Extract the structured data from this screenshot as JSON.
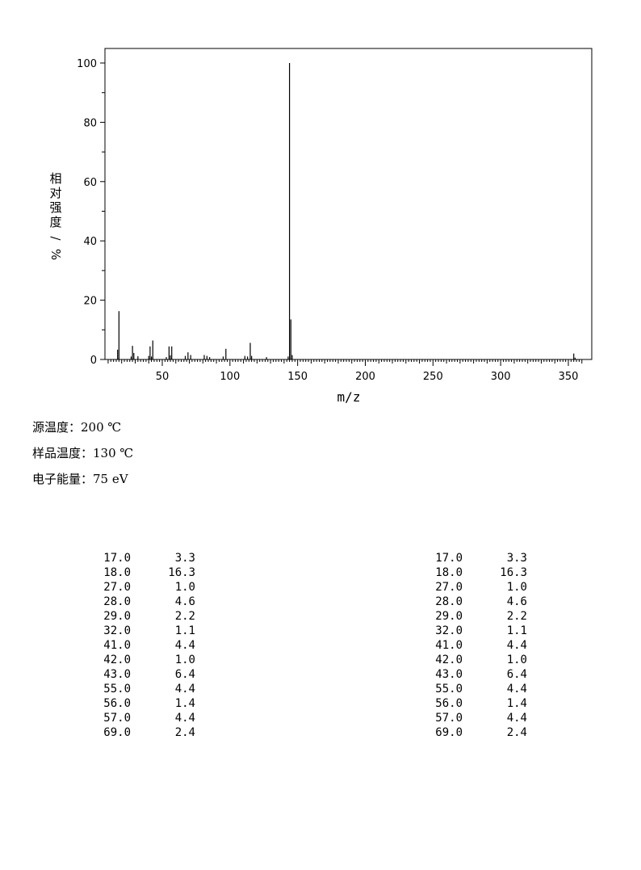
{
  "chart_data": {
    "type": "bar",
    "xlabel": "m/z",
    "ylabel": "相对强度/%",
    "xlim": [
      10,
      362
    ],
    "ylim": [
      0,
      105
    ],
    "xticks": [
      50,
      100,
      150,
      200,
      250,
      300,
      350
    ],
    "yticks": [
      0,
      20,
      40,
      60,
      80,
      100
    ],
    "grid": false,
    "peaks": [
      {
        "mz": 17,
        "intensity": 3.3
      },
      {
        "mz": 18,
        "intensity": 16.3
      },
      {
        "mz": 27,
        "intensity": 1.0
      },
      {
        "mz": 28,
        "intensity": 4.6
      },
      {
        "mz": 29,
        "intensity": 2.2
      },
      {
        "mz": 32,
        "intensity": 1.1
      },
      {
        "mz": 40,
        "intensity": 1.2
      },
      {
        "mz": 41,
        "intensity": 4.4
      },
      {
        "mz": 42,
        "intensity": 1.0
      },
      {
        "mz": 43,
        "intensity": 6.4
      },
      {
        "mz": 53,
        "intensity": 0.8
      },
      {
        "mz": 55,
        "intensity": 4.4
      },
      {
        "mz": 56,
        "intensity": 1.4
      },
      {
        "mz": 57,
        "intensity": 4.4
      },
      {
        "mz": 67,
        "intensity": 1.2
      },
      {
        "mz": 69,
        "intensity": 2.4
      },
      {
        "mz": 71,
        "intensity": 1.5
      },
      {
        "mz": 81,
        "intensity": 1.5
      },
      {
        "mz": 83,
        "intensity": 1.2
      },
      {
        "mz": 85,
        "intensity": 0.8
      },
      {
        "mz": 95,
        "intensity": 1.0
      },
      {
        "mz": 97,
        "intensity": 3.6
      },
      {
        "mz": 111,
        "intensity": 1.2
      },
      {
        "mz": 113,
        "intensity": 1.0
      },
      {
        "mz": 115,
        "intensity": 5.6
      },
      {
        "mz": 116,
        "intensity": 1.2
      },
      {
        "mz": 127,
        "intensity": 0.8
      },
      {
        "mz": 143,
        "intensity": 1.0
      },
      {
        "mz": 144,
        "intensity": 100.0
      },
      {
        "mz": 145,
        "intensity": 13.5
      },
      {
        "mz": 146,
        "intensity": 1.5
      },
      {
        "mz": 354,
        "intensity": 2.0
      },
      {
        "mz": 355,
        "intensity": 0.6
      }
    ]
  },
  "params": [
    {
      "label": "源温度：",
      "value": "200 ℃"
    },
    {
      "label": "样品温度：",
      "value": "130 ℃"
    },
    {
      "label": "电子能量：",
      "value": "75 eV"
    }
  ],
  "table_left": [
    {
      "mz": "17.0",
      "ab": "3.3"
    },
    {
      "mz": "18.0",
      "ab": "16.3"
    },
    {
      "mz": "27.0",
      "ab": "1.0"
    },
    {
      "mz": "28.0",
      "ab": "4.6"
    },
    {
      "mz": "29.0",
      "ab": "2.2"
    },
    {
      "mz": "32.0",
      "ab": "1.1"
    },
    {
      "mz": "41.0",
      "ab": "4.4"
    },
    {
      "mz": "42.0",
      "ab": "1.0"
    },
    {
      "mz": "43.0",
      "ab": "6.4"
    },
    {
      "mz": "55.0",
      "ab": "4.4"
    },
    {
      "mz": "56.0",
      "ab": "1.4"
    },
    {
      "mz": "57.0",
      "ab": "4.4"
    },
    {
      "mz": "69.0",
      "ab": "2.4"
    }
  ],
  "table_right": [
    {
      "mz": "17.0",
      "ab": "3.3"
    },
    {
      "mz": "18.0",
      "ab": "16.3"
    },
    {
      "mz": "27.0",
      "ab": "1.0"
    },
    {
      "mz": "28.0",
      "ab": "4.6"
    },
    {
      "mz": "29.0",
      "ab": "2.2"
    },
    {
      "mz": "32.0",
      "ab": "1.1"
    },
    {
      "mz": "41.0",
      "ab": "4.4"
    },
    {
      "mz": "42.0",
      "ab": "1.0"
    },
    {
      "mz": "43.0",
      "ab": "6.4"
    },
    {
      "mz": "55.0",
      "ab": "4.4"
    },
    {
      "mz": "56.0",
      "ab": "1.4"
    },
    {
      "mz": "57.0",
      "ab": "4.4"
    },
    {
      "mz": "69.0",
      "ab": "2.4"
    }
  ]
}
